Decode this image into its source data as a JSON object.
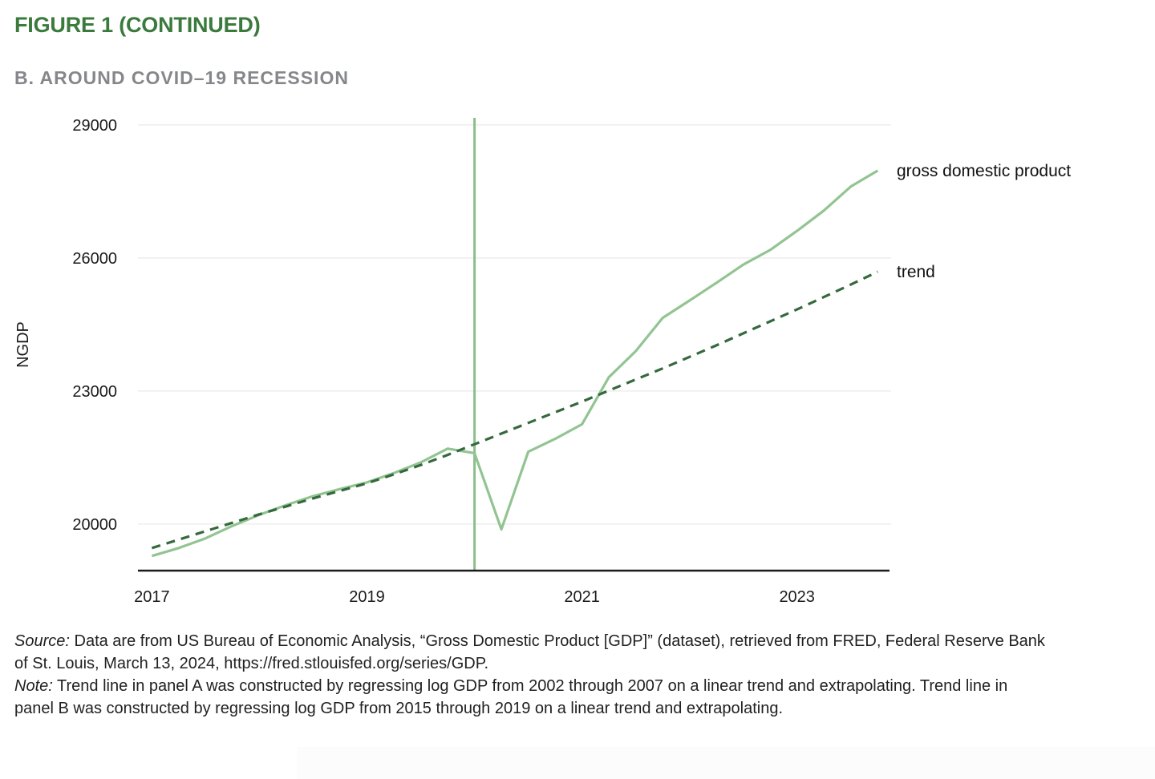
{
  "header": {
    "title": "FIGURE 1 (CONTINUED)",
    "subtitle": "B. AROUND COVID–19 RECESSION"
  },
  "chart_data": {
    "type": "line",
    "title": "FIGURE 1 (CONTINUED)",
    "subtitle": "B. AROUND COVID–19 RECESSION",
    "ylabel": "NGDP",
    "xlabel": "",
    "grid": "horizontal",
    "legend_position": "right-of-line-ends",
    "xlim": [
      2016.87,
      2023.86
    ],
    "ylim": [
      18950,
      29160
    ],
    "xticks": [
      2017,
      2019,
      2021,
      2023
    ],
    "yticks": [
      20000,
      23000,
      26000,
      29000
    ],
    "event_line": {
      "x": 2020,
      "label": "covid-19-recession-marker",
      "color": "#8cbd8c"
    },
    "colors": {
      "grid": "#eaeaea",
      "axis": "#1a1a1a",
      "text": "#1a1a1a"
    },
    "x": [
      2017.0,
      2017.25,
      2017.5,
      2017.75,
      2018.0,
      2018.25,
      2018.5,
      2018.75,
      2019.0,
      2019.25,
      2019.5,
      2019.75,
      2020.0,
      2020.25,
      2020.5,
      2020.75,
      2021.0,
      2021.25,
      2021.5,
      2021.75,
      2022.0,
      2022.25,
      2022.5,
      2022.75,
      2023.0,
      2023.25,
      2023.5,
      2023.75
    ],
    "series": [
      {
        "key": "gdp",
        "name": "gross domestic product",
        "style": "solid",
        "color": "#92c492",
        "values": [
          19280,
          19460,
          19680,
          19960,
          20210,
          20430,
          20630,
          20790,
          20940,
          21150,
          21390,
          21700,
          21600,
          19880,
          21630,
          21920,
          22250,
          23310,
          23900,
          24650,
          25040,
          25440,
          25850,
          26180,
          26610,
          27070,
          27610,
          27970
        ]
      },
      {
        "key": "trend",
        "name": "trend",
        "style": "dashed",
        "dash": "11 8",
        "color": "#35693d",
        "values": [
          19460,
          19650,
          19840,
          20030,
          20220,
          20400,
          20580,
          20750,
          20920,
          21120,
          21330,
          21560,
          21800,
          22040,
          22280,
          22520,
          22760,
          23010,
          23260,
          23510,
          23770,
          24030,
          24300,
          24570,
          24840,
          25120,
          25400,
          25690
        ]
      }
    ]
  },
  "footnotes": {
    "source_label": "Source:",
    "source_line1": "Data are from US Bureau of Economic Analysis, “Gross Domestic Product [GDP]” (dataset), retrieved from FRED, Federal Reserve Bank",
    "source_line2": "of St. Louis, March 13, 2024, https://fred.stlouisfed.org/series/GDP.",
    "note_label": "Note:",
    "note_line1": "Trend line in panel A was constructed by regressing log GDP from 2002 through 2007 on a linear trend and extrapolating. Trend line in",
    "note_line2": "panel B was constructed by regressing log GDP from 2015 through 2019 on a linear trend and extrapolating."
  }
}
